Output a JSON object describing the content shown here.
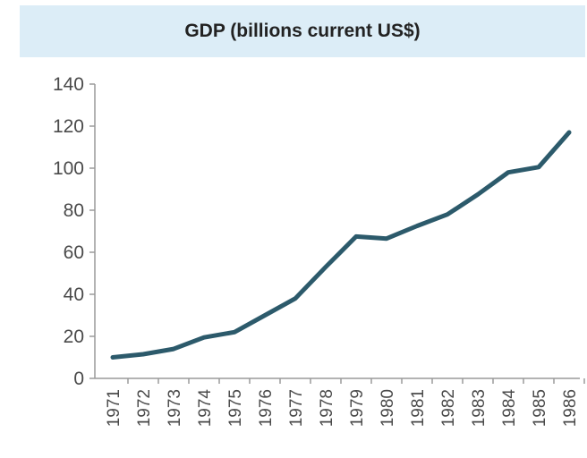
{
  "chart_data": {
    "type": "line",
    "title": "GDP (billions current US$)",
    "xlabel": "",
    "ylabel": "",
    "ylim": [
      0,
      140
    ],
    "yticks": [
      "0",
      "20",
      "40",
      "60",
      "80",
      "100",
      "120",
      "140"
    ],
    "categories": [
      "1971",
      "1972",
      "1973",
      "1974",
      "1975",
      "1976",
      "1977",
      "1978",
      "1979",
      "1980",
      "1981",
      "1982",
      "1983",
      "1984",
      "1985",
      "1986"
    ],
    "series": [
      {
        "values": [
          10,
          11.5,
          14,
          19.5,
          22,
          30,
          38,
          53,
          67.5,
          66.5,
          72.5,
          78,
          87.5,
          98,
          100.5,
          117
        ]
      }
    ],
    "grid": false,
    "legend": "none",
    "colors": {
      "line": "#2c5a6b",
      "title_band": "#dcedf7",
      "axis": "#9a9a9a",
      "text": "#4a4a4a"
    }
  }
}
